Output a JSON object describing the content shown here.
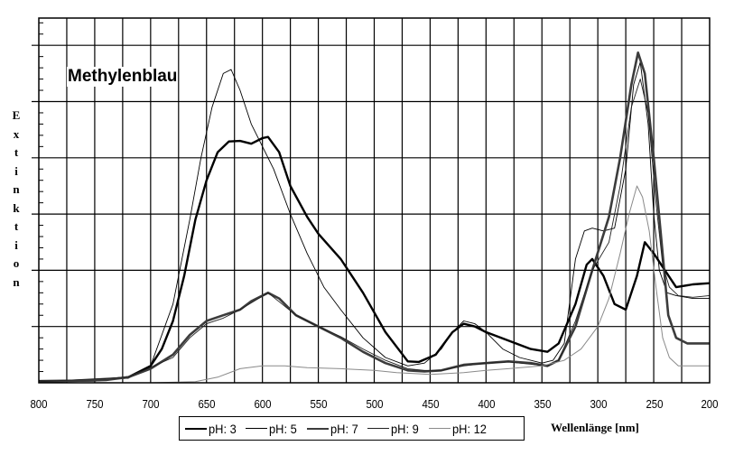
{
  "chart_data": {
    "type": "line",
    "title": "Methylenblau",
    "xlabel": "Wellenlänge [nm]",
    "ylabel": "Extinktion",
    "xlim": [
      800,
      200
    ],
    "x_reversed": true,
    "ylim": [
      0,
      6.5
    ],
    "x_ticks": [
      800,
      750,
      700,
      650,
      600,
      550,
      500,
      450,
      400,
      350,
      300,
      250,
      200
    ],
    "y_ticks_labeled": false,
    "grid": true,
    "legend_position": "bottom",
    "series": [
      {
        "name": "pH: 3",
        "color": "#000000",
        "width": 2.4,
        "points": [
          [
            800,
            0.03
          ],
          [
            750,
            0.04
          ],
          [
            720,
            0.1
          ],
          [
            700,
            0.3
          ],
          [
            690,
            0.6
          ],
          [
            680,
            1.1
          ],
          [
            670,
            1.9
          ],
          [
            660,
            2.9
          ],
          [
            650,
            3.6
          ],
          [
            640,
            4.1
          ],
          [
            630,
            4.29
          ],
          [
            620,
            4.3
          ],
          [
            610,
            4.25
          ],
          [
            600,
            4.35
          ],
          [
            595,
            4.37
          ],
          [
            585,
            4.1
          ],
          [
            575,
            3.5
          ],
          [
            560,
            2.95
          ],
          [
            550,
            2.65
          ],
          [
            530,
            2.2
          ],
          [
            510,
            1.6
          ],
          [
            490,
            0.9
          ],
          [
            470,
            0.38
          ],
          [
            460,
            0.37
          ],
          [
            445,
            0.5
          ],
          [
            430,
            0.9
          ],
          [
            420,
            1.05
          ],
          [
            410,
            1.0
          ],
          [
            400,
            0.9
          ],
          [
            380,
            0.75
          ],
          [
            360,
            0.6
          ],
          [
            345,
            0.55
          ],
          [
            335,
            0.7
          ],
          [
            320,
            1.4
          ],
          [
            310,
            2.1
          ],
          [
            305,
            2.2
          ],
          [
            295,
            1.9
          ],
          [
            285,
            1.4
          ],
          [
            275,
            1.3
          ],
          [
            265,
            1.9
          ],
          [
            258,
            2.5
          ],
          [
            250,
            2.3
          ],
          [
            240,
            2.0
          ],
          [
            230,
            1.7
          ],
          [
            215,
            1.75
          ],
          [
            200,
            1.77
          ]
        ]
      },
      {
        "name": "pH: 5",
        "color": "#000000",
        "width": 0.9,
        "points": [
          [
            800,
            0.02
          ],
          [
            720,
            0.08
          ],
          [
            700,
            0.3
          ],
          [
            680,
            1.4
          ],
          [
            665,
            2.9
          ],
          [
            655,
            4.0
          ],
          [
            645,
            4.9
          ],
          [
            635,
            5.5
          ],
          [
            628,
            5.57
          ],
          [
            620,
            5.2
          ],
          [
            610,
            4.6
          ],
          [
            600,
            4.2
          ],
          [
            590,
            3.8
          ],
          [
            575,
            3.0
          ],
          [
            560,
            2.3
          ],
          [
            545,
            1.7
          ],
          [
            530,
            1.3
          ],
          [
            510,
            0.8
          ],
          [
            490,
            0.45
          ],
          [
            470,
            0.3
          ],
          [
            455,
            0.35
          ],
          [
            440,
            0.6
          ],
          [
            430,
            0.9
          ],
          [
            420,
            1.1
          ],
          [
            410,
            1.05
          ],
          [
            400,
            0.9
          ],
          [
            385,
            0.6
          ],
          [
            370,
            0.45
          ],
          [
            350,
            0.35
          ],
          [
            340,
            0.4
          ],
          [
            330,
            0.7
          ],
          [
            320,
            2.2
          ],
          [
            312,
            2.7
          ],
          [
            305,
            2.75
          ],
          [
            295,
            2.7
          ],
          [
            285,
            2.75
          ],
          [
            275,
            3.8
          ],
          [
            268,
            5.3
          ],
          [
            262,
            5.7
          ],
          [
            255,
            4.6
          ],
          [
            250,
            3.0
          ],
          [
            245,
            2.0
          ],
          [
            238,
            1.6
          ],
          [
            230,
            1.55
          ],
          [
            215,
            1.5
          ],
          [
            200,
            1.5
          ]
        ]
      },
      {
        "name": "pH: 7",
        "color": "#3c3c3c",
        "width": 2.6,
        "points": [
          [
            800,
            0.02
          ],
          [
            740,
            0.05
          ],
          [
            720,
            0.1
          ],
          [
            700,
            0.25
          ],
          [
            680,
            0.5
          ],
          [
            665,
            0.85
          ],
          [
            650,
            1.1
          ],
          [
            635,
            1.2
          ],
          [
            620,
            1.3
          ],
          [
            610,
            1.45
          ],
          [
            595,
            1.6
          ],
          [
            585,
            1.5
          ],
          [
            570,
            1.2
          ],
          [
            550,
            1.0
          ],
          [
            530,
            0.8
          ],
          [
            510,
            0.55
          ],
          [
            490,
            0.35
          ],
          [
            470,
            0.22
          ],
          [
            455,
            0.2
          ],
          [
            440,
            0.22
          ],
          [
            420,
            0.32
          ],
          [
            400,
            0.35
          ],
          [
            380,
            0.38
          ],
          [
            360,
            0.35
          ],
          [
            345,
            0.3
          ],
          [
            335,
            0.4
          ],
          [
            320,
            1.0
          ],
          [
            305,
            2.0
          ],
          [
            290,
            2.95
          ],
          [
            280,
            4.0
          ],
          [
            270,
            5.3
          ],
          [
            264,
            5.87
          ],
          [
            258,
            5.5
          ],
          [
            250,
            4.0
          ],
          [
            243,
            2.5
          ],
          [
            237,
            1.2
          ],
          [
            230,
            0.8
          ],
          [
            220,
            0.7
          ],
          [
            200,
            0.7
          ]
        ]
      },
      {
        "name": "pH: 9",
        "color": "#202020",
        "width": 0.9,
        "points": [
          [
            800,
            0.02
          ],
          [
            720,
            0.1
          ],
          [
            680,
            0.45
          ],
          [
            665,
            0.8
          ],
          [
            650,
            1.05
          ],
          [
            635,
            1.15
          ],
          [
            620,
            1.3
          ],
          [
            595,
            1.6
          ],
          [
            570,
            1.2
          ],
          [
            550,
            1.0
          ],
          [
            530,
            0.82
          ],
          [
            510,
            0.6
          ],
          [
            490,
            0.4
          ],
          [
            470,
            0.25
          ],
          [
            455,
            0.22
          ],
          [
            440,
            0.22
          ],
          [
            420,
            0.3
          ],
          [
            400,
            0.35
          ],
          [
            380,
            0.37
          ],
          [
            360,
            0.33
          ],
          [
            345,
            0.3
          ],
          [
            335,
            0.4
          ],
          [
            320,
            1.1
          ],
          [
            305,
            2.0
          ],
          [
            290,
            2.5
          ],
          [
            280,
            3.5
          ],
          [
            270,
            4.9
          ],
          [
            262,
            5.4
          ],
          [
            255,
            4.8
          ],
          [
            248,
            3.2
          ],
          [
            242,
            2.1
          ],
          [
            236,
            1.7
          ],
          [
            228,
            1.55
          ],
          [
            215,
            1.52
          ],
          [
            200,
            1.55
          ]
        ]
      },
      {
        "name": "pH: 12",
        "color": "#8a8a8a",
        "width": 1.0,
        "points": [
          [
            800,
            0.0
          ],
          [
            700,
            0.0
          ],
          [
            660,
            0.02
          ],
          [
            640,
            0.1
          ],
          [
            620,
            0.25
          ],
          [
            600,
            0.3
          ],
          [
            580,
            0.3
          ],
          [
            560,
            0.27
          ],
          [
            530,
            0.25
          ],
          [
            500,
            0.22
          ],
          [
            480,
            0.18
          ],
          [
            450,
            0.15
          ],
          [
            420,
            0.18
          ],
          [
            400,
            0.22
          ],
          [
            380,
            0.25
          ],
          [
            350,
            0.3
          ],
          [
            330,
            0.4
          ],
          [
            315,
            0.6
          ],
          [
            300,
            1.0
          ],
          [
            290,
            1.5
          ],
          [
            280,
            2.3
          ],
          [
            272,
            3.0
          ],
          [
            265,
            3.5
          ],
          [
            260,
            3.3
          ],
          [
            254,
            2.7
          ],
          [
            248,
            1.7
          ],
          [
            242,
            0.8
          ],
          [
            236,
            0.45
          ],
          [
            228,
            0.3
          ],
          [
            200,
            0.3
          ]
        ]
      }
    ]
  },
  "labels": {
    "title": "Methylenblau",
    "ylabel_chars": [
      "E",
      "x",
      "t",
      "i",
      "n",
      "k",
      "t",
      "i",
      "o",
      "n"
    ],
    "xlabel": "Wellenlänge [nm]",
    "x_ticks": [
      "800",
      "750",
      "700",
      "650",
      "600",
      "550",
      "500",
      "450",
      "400",
      "350",
      "300",
      "250",
      "200"
    ],
    "legend": [
      "pH: 3",
      "pH: 5",
      "pH: 7",
      "pH: 9",
      "pH: 12"
    ]
  }
}
